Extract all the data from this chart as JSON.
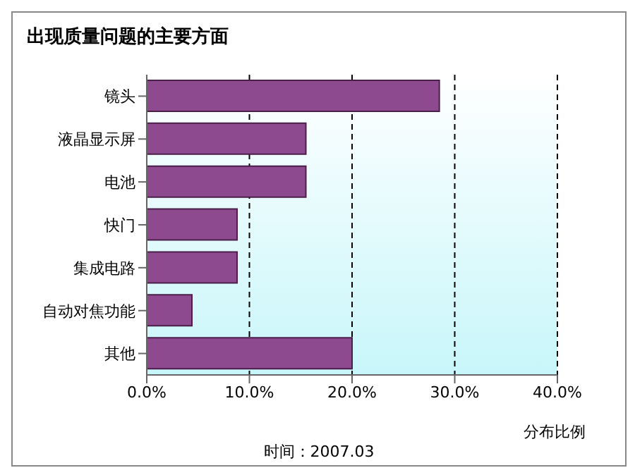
{
  "chart_data": {
    "type": "bar",
    "orientation": "horizontal",
    "title": "出现质量问题的主要方面",
    "xlabel": "分布比例",
    "categories": [
      "镜头",
      "液晶显示屏",
      "电池",
      "快门",
      "集成电路",
      "自动对焦功能",
      "其他"
    ],
    "values": [
      28.5,
      15.5,
      15.5,
      8.8,
      8.8,
      4.4,
      20
    ],
    "color": "#8e4a8e",
    "xlim": [
      0,
      40
    ],
    "xticks": [
      {
        "value": 0,
        "label": "0.0%"
      },
      {
        "value": 10,
        "label": "10.0%"
      },
      {
        "value": 20,
        "label": "20.0%"
      },
      {
        "value": 30,
        "label": "30.0%"
      },
      {
        "value": 40,
        "label": "40.0%"
      }
    ],
    "grid": "x",
    "annotations": [
      "时间：2007.03"
    ]
  }
}
